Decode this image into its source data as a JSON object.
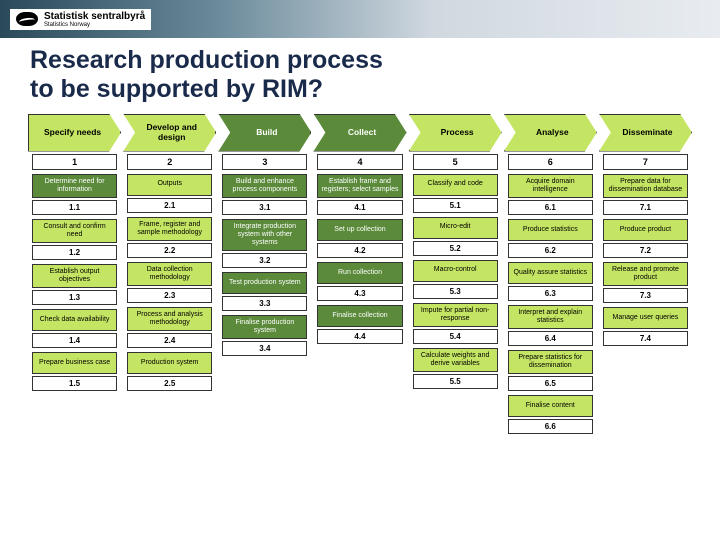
{
  "logo": {
    "name": "Statistisk sentralbyrå",
    "sub": "Statistics Norway"
  },
  "title_line1": "Research production process",
  "title_line2": "to be supported by RIM?",
  "colors": {
    "light_green": "#c4e563",
    "dark_green": "#5a8a3a",
    "border": "#333333",
    "title_color": "#1a2a4a"
  },
  "phases": [
    {
      "label": "Specify needs",
      "num": "1",
      "style": "light",
      "tasks": [
        {
          "label": "Determine need for information",
          "num": "1.1",
          "style": "dark"
        },
        {
          "label": "Consult and confirm need",
          "num": "1.2",
          "style": "light"
        },
        {
          "label": "Establish output objectives",
          "num": "1.3",
          "style": "light"
        },
        {
          "label": "Check data availability",
          "num": "1.4",
          "style": "light"
        },
        {
          "label": "Prepare business case",
          "num": "1.5",
          "style": "light"
        }
      ]
    },
    {
      "label": "Develop and design",
      "num": "2",
      "style": "light",
      "tasks": [
        {
          "label": "Outputs",
          "num": "2.1",
          "style": "light"
        },
        {
          "label": "Frame, register and sample methodology",
          "num": "2.2",
          "style": "light"
        },
        {
          "label": "Data collection methodology",
          "num": "2.3",
          "style": "light"
        },
        {
          "label": "Process and analysis methodology",
          "num": "2.4",
          "style": "light"
        },
        {
          "label": "Production system",
          "num": "2.5",
          "style": "light"
        }
      ]
    },
    {
      "label": "Build",
      "num": "3",
      "style": "dark",
      "tasks": [
        {
          "label": "Build and enhance process components",
          "num": "3.1",
          "style": "dark"
        },
        {
          "label": "Integrate production system with other systems",
          "num": "3.2",
          "style": "dark"
        },
        {
          "label": "Test production system",
          "num": "3.3",
          "style": "dark"
        },
        {
          "label": "Finalise production system",
          "num": "3.4",
          "style": "dark"
        }
      ]
    },
    {
      "label": "Collect",
      "num": "4",
      "style": "dark",
      "tasks": [
        {
          "label": "Establish frame and registers; select samples",
          "num": "4.1",
          "style": "dark"
        },
        {
          "label": "Set up collection",
          "num": "4.2",
          "style": "dark"
        },
        {
          "label": "Run collection",
          "num": "4.3",
          "style": "dark"
        },
        {
          "label": "Finalise collection",
          "num": "4.4",
          "style": "dark"
        }
      ]
    },
    {
      "label": "Process",
      "num": "5",
      "style": "light",
      "tasks": [
        {
          "label": "Classify and code",
          "num": "5.1",
          "style": "light"
        },
        {
          "label": "Micro-edit",
          "num": "5.2",
          "style": "light"
        },
        {
          "label": "Macro-control",
          "num": "5.3",
          "style": "light"
        },
        {
          "label": "Impute for partial non-response",
          "num": "5.4",
          "style": "light"
        },
        {
          "label": "Calculate weights and derive variables",
          "num": "5.5",
          "style": "light"
        }
      ]
    },
    {
      "label": "Analyse",
      "num": "6",
      "style": "light",
      "tasks": [
        {
          "label": "Acquire domain intelligence",
          "num": "6.1",
          "style": "light"
        },
        {
          "label": "Produce statistics",
          "num": "6.2",
          "style": "light"
        },
        {
          "label": "Quality assure statistics",
          "num": "6.3",
          "style": "light"
        },
        {
          "label": "Interpret and explain statistics",
          "num": "6.4",
          "style": "light"
        },
        {
          "label": "Prepare statistics for dissemination",
          "num": "6.5",
          "style": "light"
        },
        {
          "label": "Finalise content",
          "num": "6.6",
          "style": "light"
        }
      ]
    },
    {
      "label": "Disseminate",
      "num": "7",
      "style": "light",
      "tasks": [
        {
          "label": "Prepare data for dissemination database",
          "num": "7.1",
          "style": "light"
        },
        {
          "label": "Produce product",
          "num": "7.2",
          "style": "light"
        },
        {
          "label": "Release and promote product",
          "num": "7.3",
          "style": "light"
        },
        {
          "label": "Manage user queries",
          "num": "7.4",
          "style": "light"
        }
      ]
    }
  ]
}
